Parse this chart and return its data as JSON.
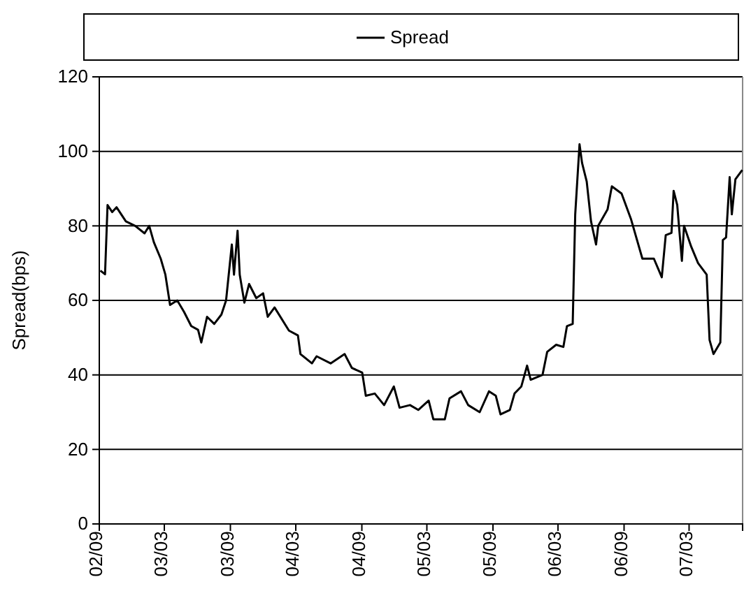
{
  "chart_data": {
    "type": "line",
    "ylabel": "Spread(bps)",
    "legend": "top",
    "grid": "y",
    "marker": "none",
    "line_style": "solid",
    "x": [
      "2002-09-04",
      "2002-09-17",
      "2002-09-24",
      "2002-10-07",
      "2002-10-19",
      "2002-11-14",
      "2002-12-10",
      "2003-01-05",
      "2003-01-18",
      "2003-01-31",
      "2003-02-19",
      "2003-03-04",
      "2003-03-17",
      "2003-04-06",
      "2003-04-25",
      "2003-05-15",
      "2003-06-03",
      "2003-06-12",
      "2003-06-28",
      "2003-07-18",
      "2003-08-07",
      "2003-08-20",
      "2003-09-05",
      "2003-09-11",
      "2003-09-21",
      "2003-09-27",
      "2003-10-10",
      "2003-10-23",
      "2003-11-12",
      "2003-12-01",
      "2003-12-14",
      "2004-01-02",
      "2004-02-11",
      "2004-03-07",
      "2004-03-14",
      "2004-04-15",
      "2004-04-28",
      "2004-06-06",
      "2004-07-15",
      "2004-08-04",
      "2004-09-02",
      "2004-09-12",
      "2004-10-07",
      "2004-11-02",
      "2004-11-29",
      "2004-12-15",
      "2005-01-13",
      "2005-02-05",
      "2005-03-06",
      "2005-03-19",
      "2005-04-20",
      "2005-05-03",
      "2005-06-04",
      "2005-06-24",
      "2005-07-26",
      "2005-08-21",
      "2005-09-09",
      "2005-09-22",
      "2005-10-18",
      "2005-10-31",
      "2005-11-19",
      "2005-12-05",
      "2005-12-15",
      "2006-01-17",
      "2006-01-30",
      "2006-02-24",
      "2006-03-16",
      "2006-03-26",
      "2006-04-11",
      "2006-04-18",
      "2006-04-30",
      "2006-05-07",
      "2006-05-20",
      "2006-06-01",
      "2006-06-15",
      "2006-06-21",
      "2006-07-17",
      "2006-07-29",
      "2006-08-25",
      "2006-09-20",
      "2006-10-22",
      "2006-11-23",
      "2006-12-15",
      "2006-12-26",
      "2007-01-11",
      "2007-01-17",
      "2007-01-27",
      "2007-02-09",
      "2007-02-15",
      "2007-03-07",
      "2007-03-26",
      "2007-04-19",
      "2007-04-27",
      "2007-05-08",
      "2007-05-27",
      "2007-06-03",
      "2007-06-12",
      "2007-06-22",
      "2007-06-28",
      "2007-07-08",
      "2007-07-27"
    ],
    "series": [
      {
        "name": "Spread",
        "color": "#000000",
        "values": [
          68,
          67,
          85.6,
          83.7,
          85,
          81.2,
          80,
          78,
          80,
          75.6,
          71.2,
          66.9,
          58.8,
          60,
          56.9,
          53.1,
          52.1,
          48.7,
          55.6,
          53.7,
          56.2,
          60,
          75,
          66.9,
          78.7,
          66.9,
          59.4,
          64.4,
          60.6,
          61.9,
          55.6,
          58.1,
          51.9,
          50.6,
          45.6,
          43.1,
          45,
          43.1,
          45.6,
          41.9,
          40.6,
          34.4,
          35,
          31.9,
          36.9,
          31.2,
          31.9,
          30.6,
          33.1,
          28.1,
          28.1,
          33.7,
          35.6,
          31.9,
          30,
          35.6,
          34.4,
          29.4,
          30.6,
          35,
          36.9,
          42.5,
          38.7,
          40,
          46.2,
          48.1,
          47.5,
          53.1,
          53.7,
          83.1,
          101.9,
          96.9,
          91.9,
          81.2,
          75,
          80,
          84.4,
          90.6,
          88.7,
          81.9,
          71.2,
          71.2,
          66.2,
          77.5,
          78.1,
          89.4,
          85.6,
          70.6,
          80,
          74.4,
          70,
          66.9,
          49.4,
          45.6,
          48.7,
          76.2,
          76.9,
          93.1,
          83.1,
          92.5,
          95
        ]
      }
    ],
    "xlim": [
      "2002-09-01",
      "2007-07-28"
    ],
    "xticks": [
      {
        "value": "2002-09",
        "label": "02/09"
      },
      {
        "value": "2003-03",
        "label": "03/03"
      },
      {
        "value": "2003-09",
        "label": "03/09"
      },
      {
        "value": "2004-03",
        "label": "04/03"
      },
      {
        "value": "2004-09",
        "label": "04/09"
      },
      {
        "value": "2005-03",
        "label": "05/03"
      },
      {
        "value": "2005-09",
        "label": "05/09"
      },
      {
        "value": "2006-03",
        "label": "06/03"
      },
      {
        "value": "2006-09",
        "label": "06/09"
      },
      {
        "value": "2007-03",
        "label": "07/03"
      }
    ],
    "ylim": [
      0,
      120
    ],
    "yticks": [
      0,
      20,
      40,
      60,
      80,
      100,
      120
    ]
  }
}
